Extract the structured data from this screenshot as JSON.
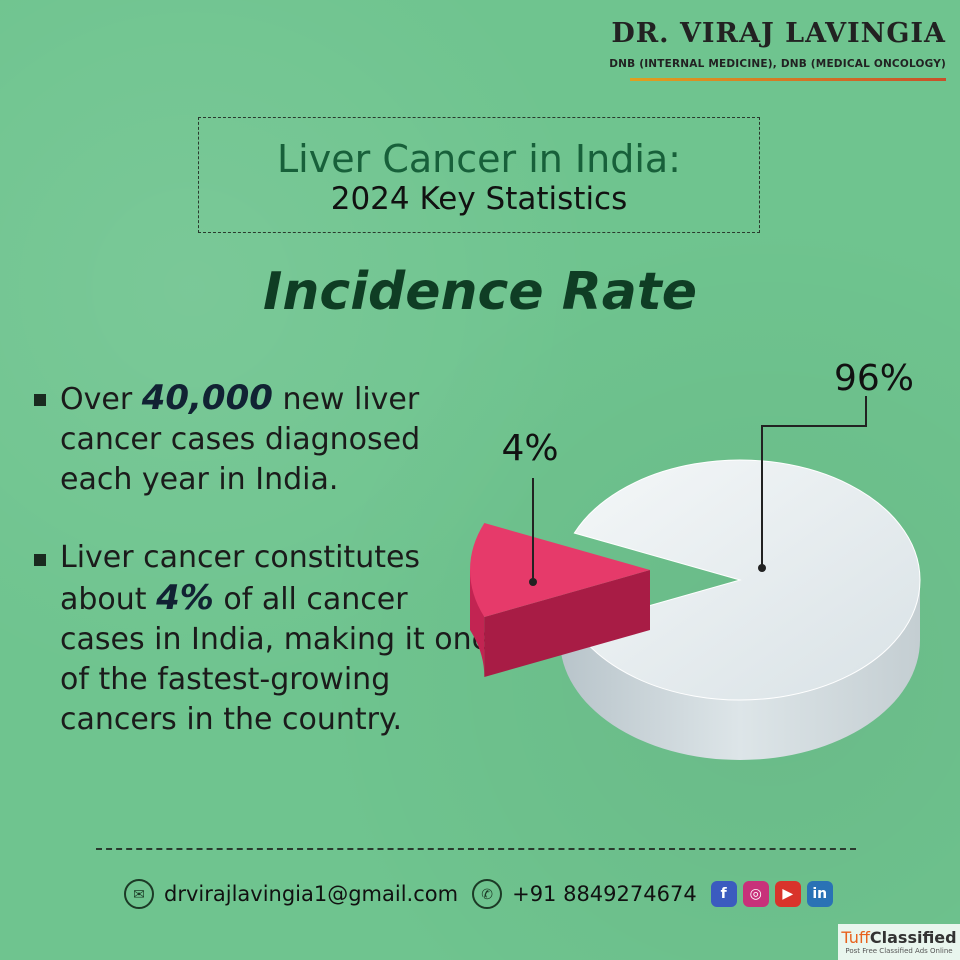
{
  "brand": {
    "name": "DR. VIRAJ LAVINGIA",
    "credentials": "DNB (INTERNAL MEDICINE), DNB (MEDICAL ONCOLOGY)"
  },
  "title": {
    "line1": "Liver Cancer in India:",
    "line2": "2024 Key Statistics"
  },
  "section_heading": "Incidence Rate",
  "bullets": [
    {
      "before": "Over ",
      "highlight": "40,000",
      "after": " new liver cancer cases diagnosed each year in India."
    },
    {
      "before": "Liver cancer constitutes about ",
      "highlight": "4%",
      "after": " of all cancer cases in India, making it one of the fastest-growing cancers in the country."
    }
  ],
  "chart_data": {
    "type": "pie",
    "slices": [
      {
        "label": "96%",
        "value": 96,
        "color": "#e8eef0"
      },
      {
        "label": "4%",
        "value": 4,
        "color": "#e63a6a"
      }
    ]
  },
  "footer": {
    "email": "drvirajlavingia1@gmail.com",
    "phone": "+91 8849274674",
    "socials": [
      "facebook-icon",
      "instagram-icon",
      "youtube-icon",
      "linkedin-icon"
    ]
  },
  "watermark": {
    "name_a": "Tuff",
    "name_b": "Classified",
    "tagline": "Post Free Classified Ads Online"
  }
}
